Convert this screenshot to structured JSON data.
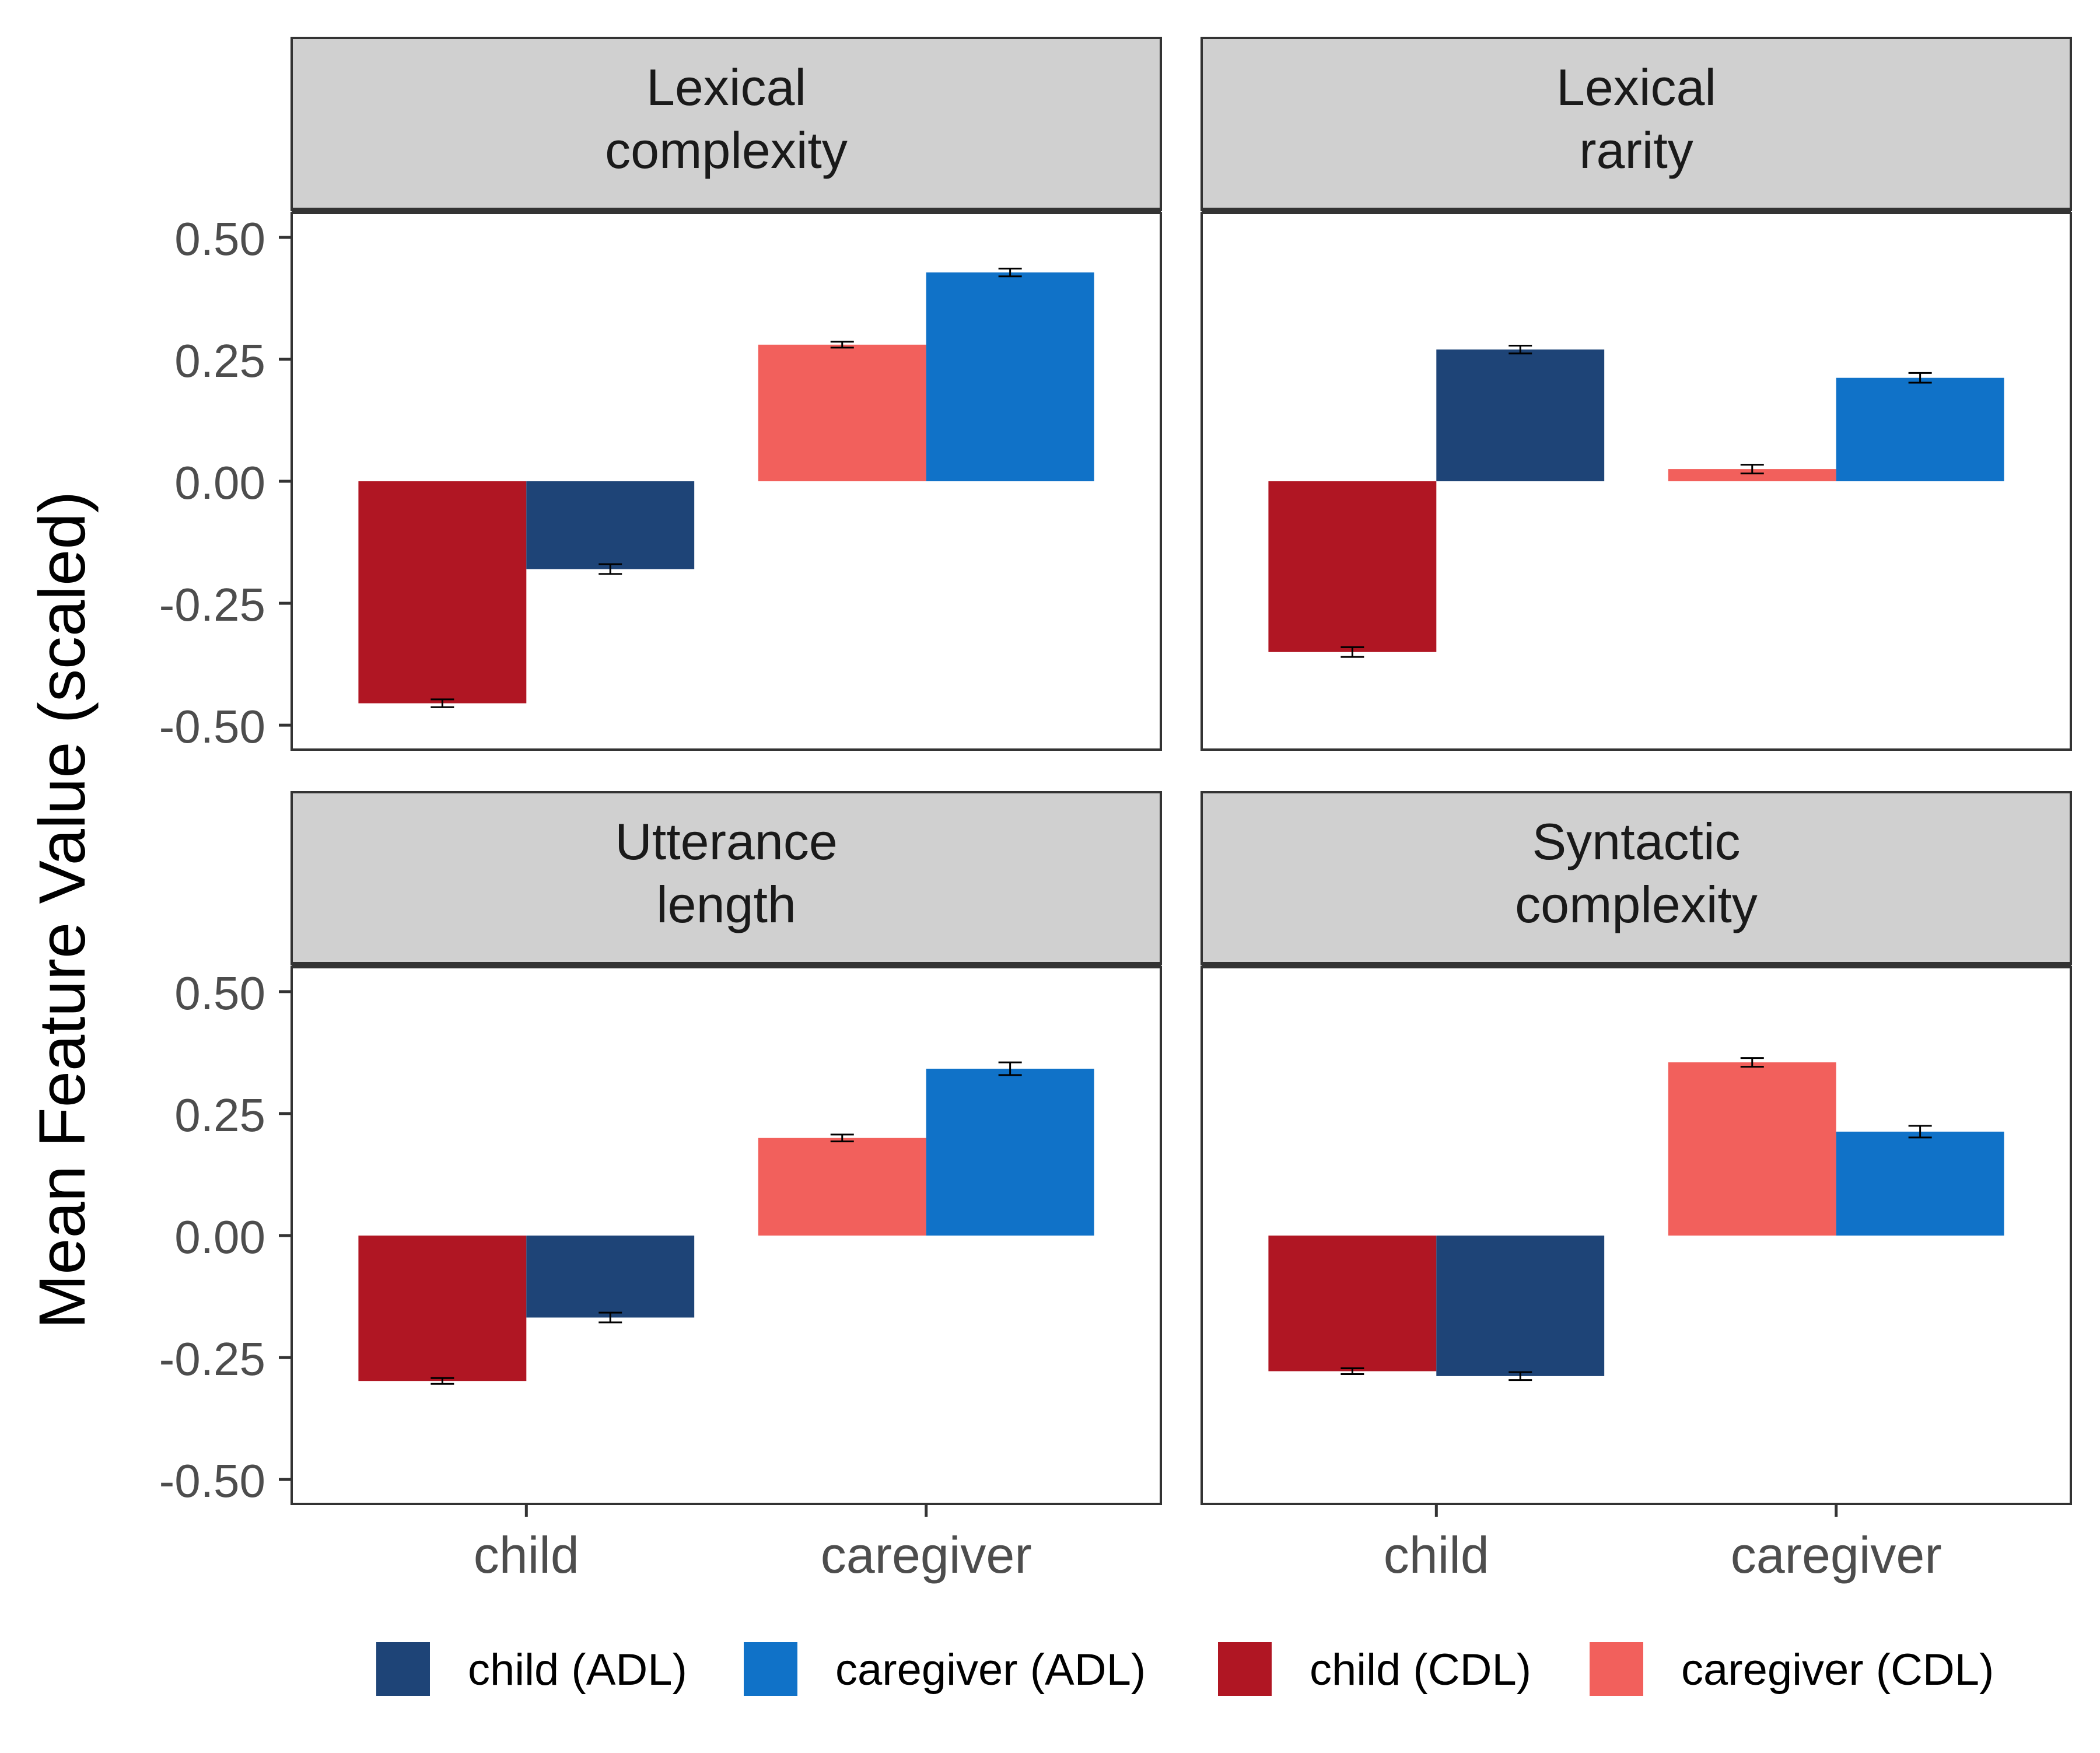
{
  "chart_data": {
    "type": "bar",
    "ylabel": "Mean Feature Value (scaled)",
    "ylim": [
      -0.55,
      0.55
    ],
    "yticks": [
      -0.5,
      -0.25,
      0,
      0.25,
      0.5
    ],
    "ytick_labels": [
      "-0.50",
      "-0.25",
      "0.00",
      "0.25",
      "0.50"
    ],
    "categories": [
      "child",
      "caregiver"
    ],
    "grid": false,
    "legend_position": "bottom",
    "series": [
      {
        "name": "child (ADL)",
        "color": "#1e4477"
      },
      {
        "name": "caregiver (ADL)",
        "color": "#1072c8"
      },
      {
        "name": "child (CDL)",
        "color": "#b01623"
      },
      {
        "name": "caregiver (CDL)",
        "color": "#f2605c"
      }
    ],
    "panels": [
      {
        "title_lines": [
          "Lexical",
          "complexity"
        ],
        "bars": [
          {
            "category": "child",
            "series": "child (CDL)",
            "value": -0.455,
            "err": 0.008
          },
          {
            "category": "child",
            "series": "child (ADL)",
            "value": -0.18,
            "err": 0.01
          },
          {
            "category": "caregiver",
            "series": "caregiver (CDL)",
            "value": 0.28,
            "err": 0.006
          },
          {
            "category": "caregiver",
            "series": "caregiver (ADL)",
            "value": 0.428,
            "err": 0.008
          }
        ]
      },
      {
        "title_lines": [
          "Lexical",
          "rarity"
        ],
        "bars": [
          {
            "category": "child",
            "series": "child (CDL)",
            "value": -0.35,
            "err": 0.01
          },
          {
            "category": "child",
            "series": "child (ADL)",
            "value": 0.27,
            "err": 0.008
          },
          {
            "category": "caregiver",
            "series": "caregiver (CDL)",
            "value": 0.025,
            "err": 0.009
          },
          {
            "category": "caregiver",
            "series": "caregiver (ADL)",
            "value": 0.212,
            "err": 0.01
          }
        ]
      },
      {
        "title_lines": [
          "Utterance",
          "length"
        ],
        "bars": [
          {
            "category": "child",
            "series": "child (CDL)",
            "value": -0.298,
            "err": 0.006
          },
          {
            "category": "child",
            "series": "child (ADL)",
            "value": -0.168,
            "err": 0.01
          },
          {
            "category": "caregiver",
            "series": "caregiver (CDL)",
            "value": 0.2,
            "err": 0.007
          },
          {
            "category": "caregiver",
            "series": "caregiver (ADL)",
            "value": 0.342,
            "err": 0.013
          }
        ]
      },
      {
        "title_lines": [
          "Syntactic",
          "complexity"
        ],
        "bars": [
          {
            "category": "child",
            "series": "child (CDL)",
            "value": -0.278,
            "err": 0.006
          },
          {
            "category": "child",
            "series": "child (ADL)",
            "value": -0.288,
            "err": 0.008
          },
          {
            "category": "caregiver",
            "series": "caregiver (CDL)",
            "value": 0.355,
            "err": 0.009
          },
          {
            "category": "caregiver",
            "series": "caregiver (ADL)",
            "value": 0.213,
            "err": 0.012
          }
        ]
      }
    ]
  }
}
